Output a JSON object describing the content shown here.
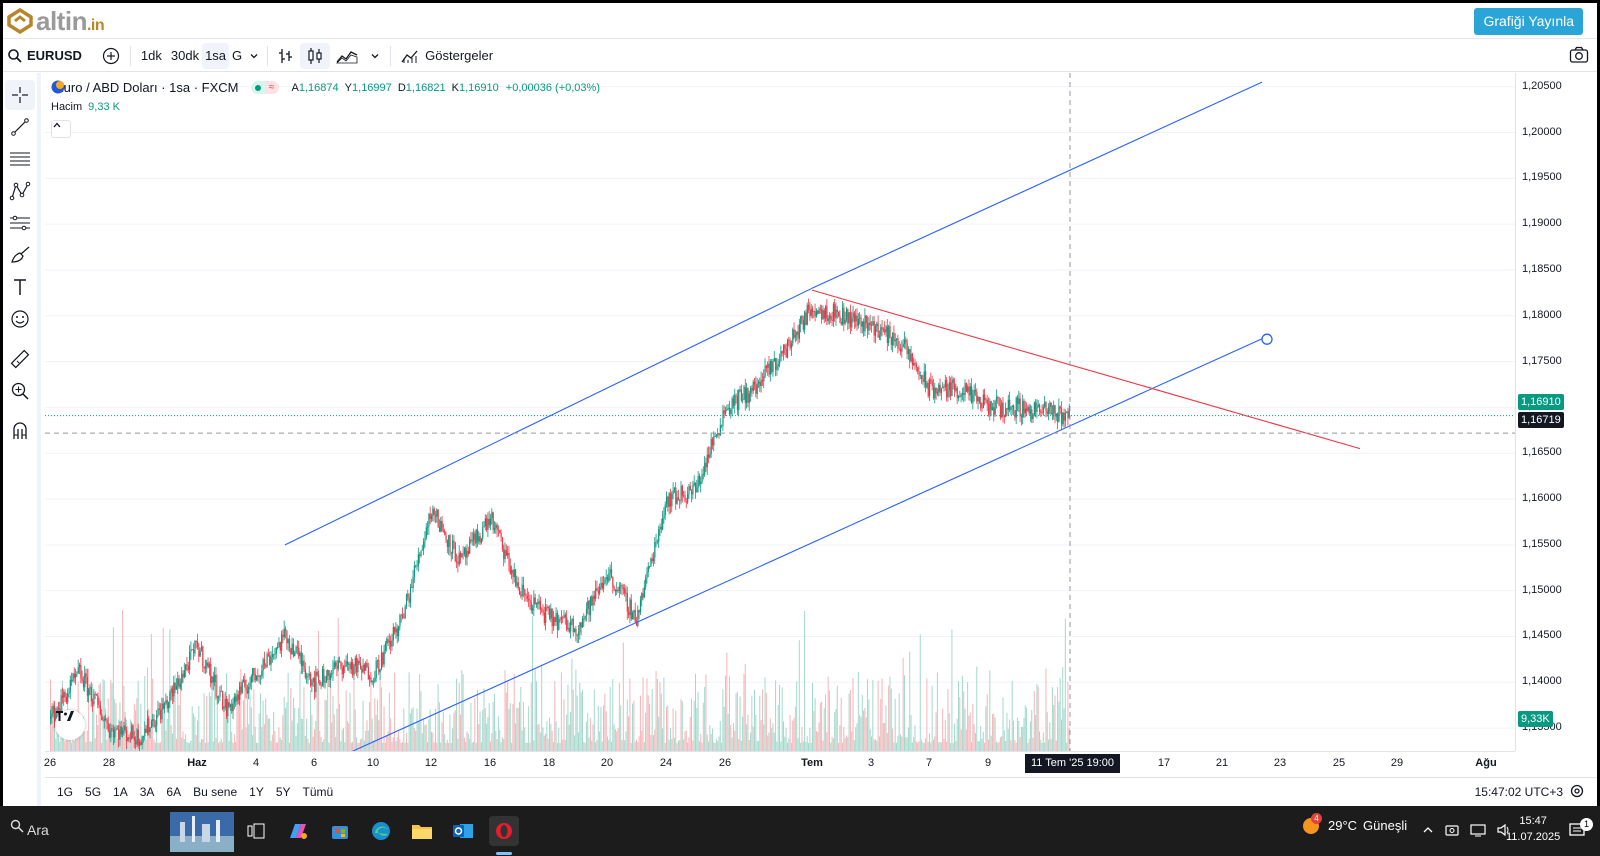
{
  "site": {
    "logo_text": "altin",
    "logo_tld": ".in",
    "publish_button": "Grafiği Yayınla",
    "brand_gold": "#b8862a",
    "accent": "#2ba5d8"
  },
  "toolbar": {
    "symbol": "EURUSD",
    "intervals": [
      "1dk",
      "30dk",
      "1sa",
      "G"
    ],
    "active_interval": "1sa",
    "indicators_label": "Göstergeler"
  },
  "legend": {
    "title": "Euro / ABD Doları · 1sa · FXCM",
    "open_label": "A",
    "open": "1,16874",
    "high_label": "Y",
    "high": "1,16997",
    "low_label": "D",
    "low": "1,16821",
    "close_label": "K",
    "close": "1,16910",
    "change": "+0,00036 (+0,03%)",
    "volume_label": "Hacim",
    "volume_value": "9,33 K"
  },
  "price_scale": {
    "ticks": [
      "1,20500",
      "1,20000",
      "1,19500",
      "1,19000",
      "1,18500",
      "1,18000",
      "1,17500",
      "1,17000",
      "1,16500",
      "1,16000",
      "1,15500",
      "1,15000",
      "1,14500",
      "1,14000",
      "1,13500"
    ],
    "last_price_label": "1,16910",
    "crosshair_price_label": "1,16719",
    "volume_label": "9,33K",
    "last_price_color": "#089981",
    "crosshair_color": "#131722"
  },
  "time_scale": {
    "ticks": [
      "26",
      "28",
      "Haz",
      "4",
      "6",
      "10",
      "12",
      "16",
      "18",
      "20",
      "24",
      "26",
      "Tem",
      "3",
      "7",
      "9",
      "17",
      "21",
      "23",
      "25",
      "29",
      "Ağu"
    ],
    "bold_ticks": [
      "Haz",
      "Tem",
      "Ağu"
    ],
    "crosshair_label": "11 Tem '25   19:00"
  },
  "range_bar": {
    "ranges": [
      "1G",
      "5G",
      "1A",
      "3A",
      "6A",
      "Bu sene",
      "1Y",
      "5Y",
      "Tümü"
    ],
    "clock": "15:47:02 UTC+3"
  },
  "taskbar": {
    "search_label": "Ara",
    "weather_temp": "29°C",
    "weather_text": "Güneşli",
    "weather_badge": "4",
    "time": "15:47",
    "date": "11.07.2025",
    "notification_count": "1"
  },
  "chart_data": {
    "type": "candlestick",
    "title": "Euro / ABD Doları · 1sa · FXCM",
    "interval": "1sa",
    "ylim": [
      1.1325,
      1.2065
    ],
    "up_color": "#089981",
    "down_color": "#f23645",
    "approx_path": [
      {
        "x": "26 May",
        "y": 1.136
      },
      {
        "x": "27 May",
        "y": 1.141
      },
      {
        "x": "28 May",
        "y": 1.135
      },
      {
        "x": "29 May",
        "y": 1.134
      },
      {
        "x": "30 May",
        "y": 1.138
      },
      {
        "x": "2 Haz",
        "y": 1.144
      },
      {
        "x": "3 Haz",
        "y": 1.137
      },
      {
        "x": "4 Haz",
        "y": 1.141
      },
      {
        "x": "5 Haz",
        "y": 1.145
      },
      {
        "x": "6 Haz",
        "y": 1.14
      },
      {
        "x": "9 Haz",
        "y": 1.142
      },
      {
        "x": "10 Haz",
        "y": 1.141
      },
      {
        "x": "11 Haz",
        "y": 1.147
      },
      {
        "x": "12 Haz",
        "y": 1.159
      },
      {
        "x": "13 Haz",
        "y": 1.153
      },
      {
        "x": "16 Haz",
        "y": 1.158
      },
      {
        "x": "17 Haz",
        "y": 1.15
      },
      {
        "x": "18 Haz",
        "y": 1.147
      },
      {
        "x": "19 Haz",
        "y": 1.146
      },
      {
        "x": "20 Haz",
        "y": 1.152
      },
      {
        "x": "23 Haz",
        "y": 1.147
      },
      {
        "x": "24 Haz",
        "y": 1.16
      },
      {
        "x": "25 Haz",
        "y": 1.161
      },
      {
        "x": "26 Haz",
        "y": 1.17
      },
      {
        "x": "27 Haz",
        "y": 1.172
      },
      {
        "x": "30 Haz",
        "y": 1.176
      },
      {
        "x": "1 Tem",
        "y": 1.181
      },
      {
        "x": "2 Tem",
        "y": 1.18
      },
      {
        "x": "3 Tem",
        "y": 1.179
      },
      {
        "x": "4 Tem",
        "y": 1.177
      },
      {
        "x": "7 Tem",
        "y": 1.172
      },
      {
        "x": "8 Tem",
        "y": 1.172
      },
      {
        "x": "9 Tem",
        "y": 1.17
      },
      {
        "x": "10 Tem",
        "y": 1.17
      },
      {
        "x": "11 Tem",
        "y": 1.1691
      }
    ],
    "drawings": [
      {
        "kind": "trendline",
        "color": "#2962ff",
        "from": {
          "x": "5 Haz",
          "y": 1.155
        },
        "to": {
          "x": "1 Tem",
          "y": 1.183
        }
      },
      {
        "kind": "trendline",
        "color": "#2962ff",
        "from": {
          "x": "1 Tem",
          "y": 1.183
        },
        "to": {
          "x": "23 Tem",
          "y": 1.2055
        }
      },
      {
        "kind": "trendline",
        "color": "#2962ff",
        "from": {
          "x": "9 Haz",
          "y": 1.132
        },
        "to": {
          "x": "23 Tem",
          "y": 1.1775
        }
      },
      {
        "kind": "trendline",
        "color": "#f23645",
        "from": {
          "x": "1 Tem",
          "y": 1.1828
        },
        "to": {
          "x": "26 Tem",
          "y": 1.1655
        }
      }
    ]
  }
}
